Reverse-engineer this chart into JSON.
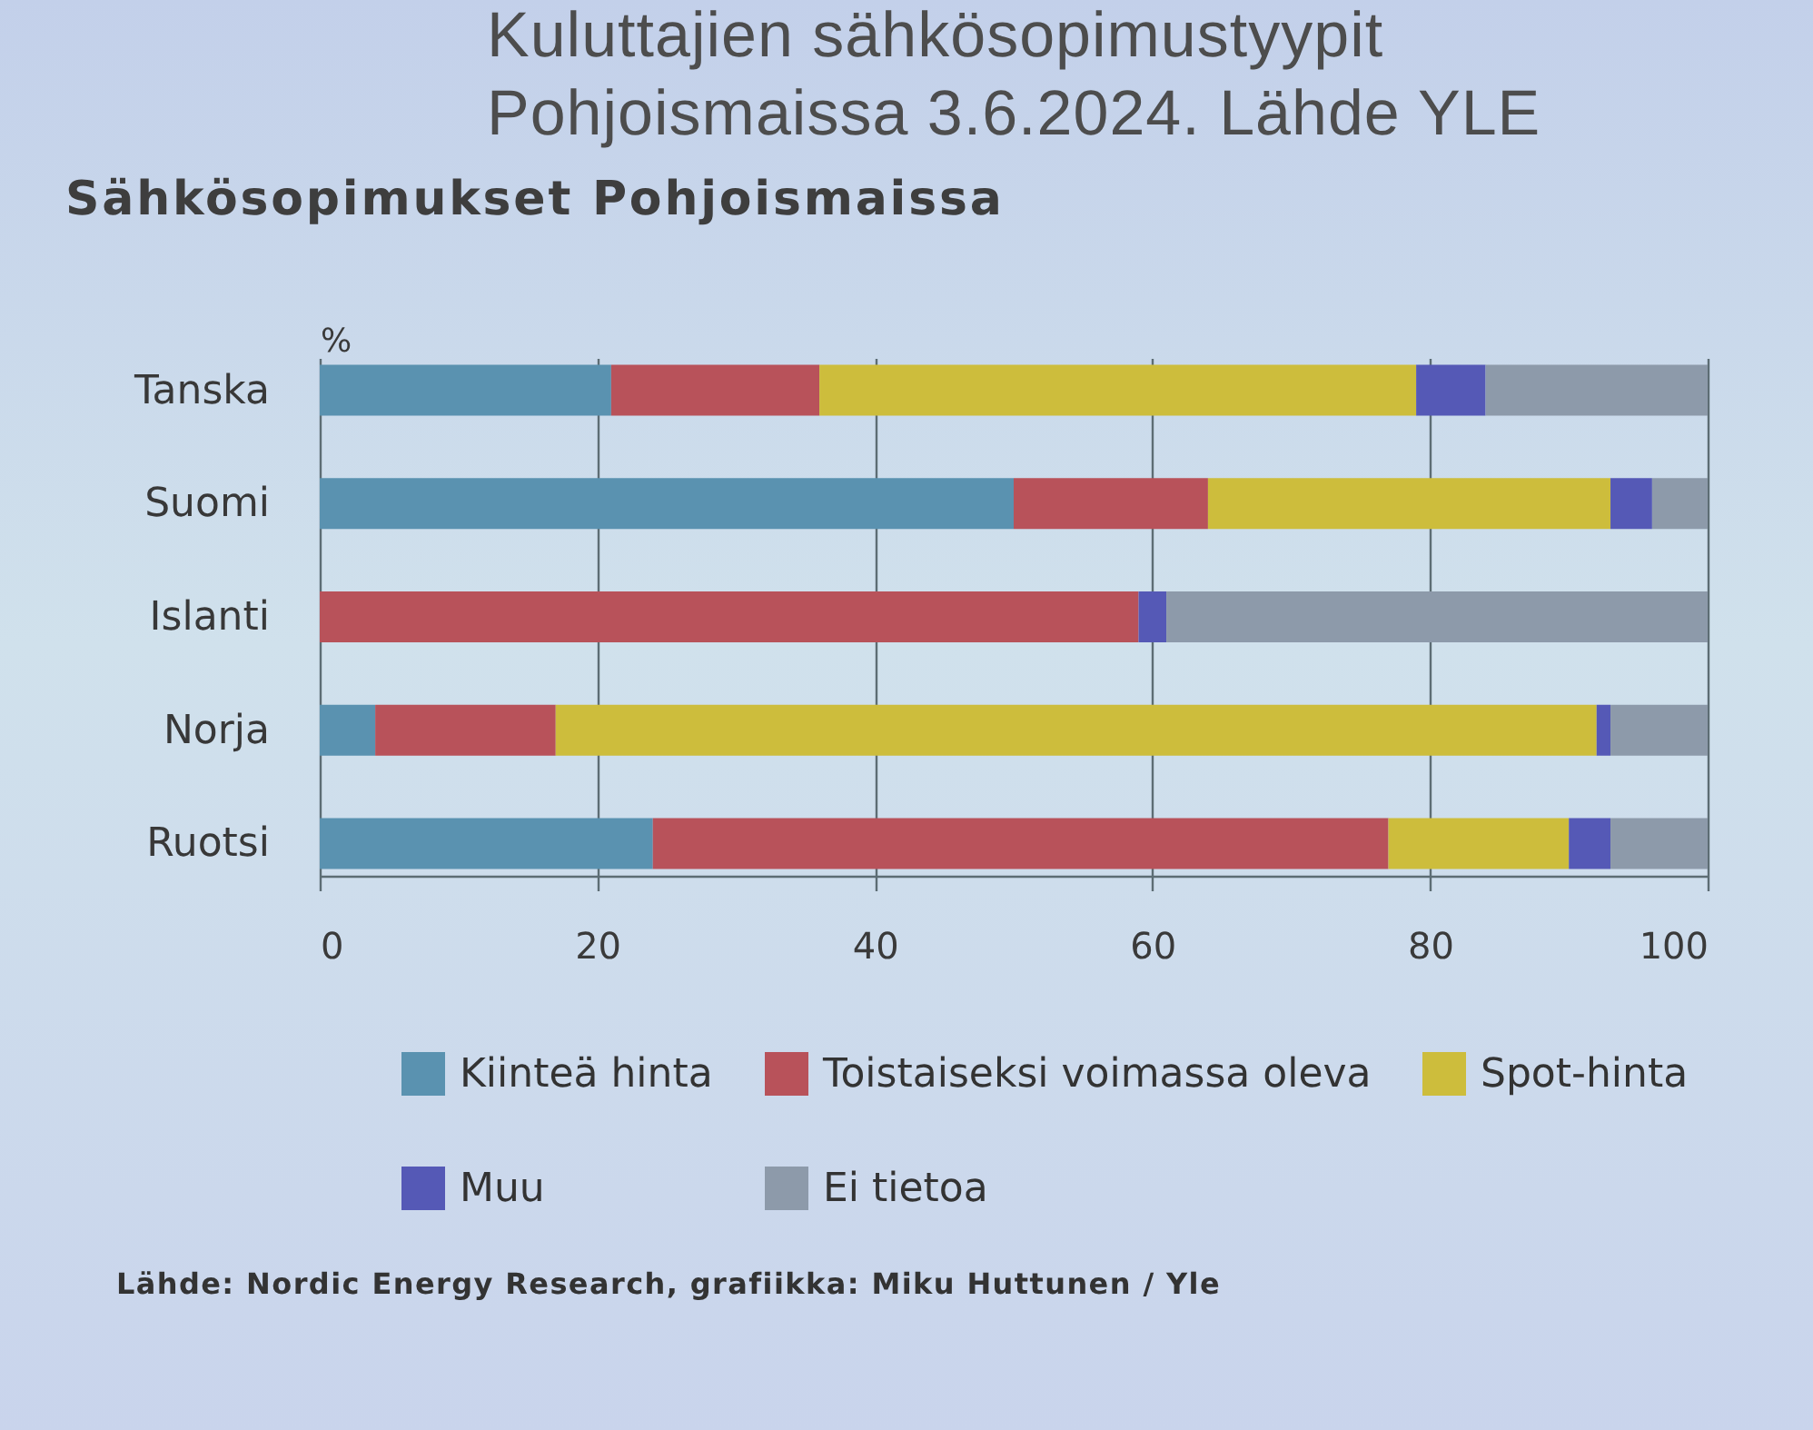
{
  "chart_data": {
    "type": "bar",
    "orientation": "horizontal",
    "stacked": true,
    "title": "Kuluttajien sähkösopimustyypit Pohjoismaissa 3.6.2024. Lähde YLE",
    "subtitle": "Sähkösopimukset Pohjoismaissa",
    "xlabel": "%",
    "annotations": [
      "Lähde: Nordic Energy Research, grafiikka: Miku Huttunen / Yle"
    ],
    "categories": [
      "Tanska",
      "Suomi",
      "Islanti",
      "Norja",
      "Ruotsi"
    ],
    "series": [
      {
        "name": "Kiinteä hinta",
        "color": "#5a92b0",
        "values": [
          21,
          50,
          null,
          4,
          24
        ]
      },
      {
        "name": "Toistaiseksi voimassa oleva",
        "color": "#b8525a",
        "values": [
          15,
          14,
          59,
          13,
          53
        ]
      },
      {
        "name": "Spot-hinta",
        "color": "#cdbd3c",
        "values": [
          43,
          29,
          null,
          75,
          13
        ]
      },
      {
        "name": "Muu",
        "color": "#5559b6",
        "values": [
          5,
          3,
          2,
          1,
          3
        ]
      },
      {
        "name": "Ei tietoa",
        "color": "#8d9aaa",
        "values": [
          16,
          4,
          39,
          7,
          7
        ]
      }
    ],
    "xlim": [
      0,
      100
    ],
    "xticks": [
      0,
      20,
      40,
      60,
      80,
      100
    ],
    "grid": "x",
    "legend": "bottom"
  }
}
